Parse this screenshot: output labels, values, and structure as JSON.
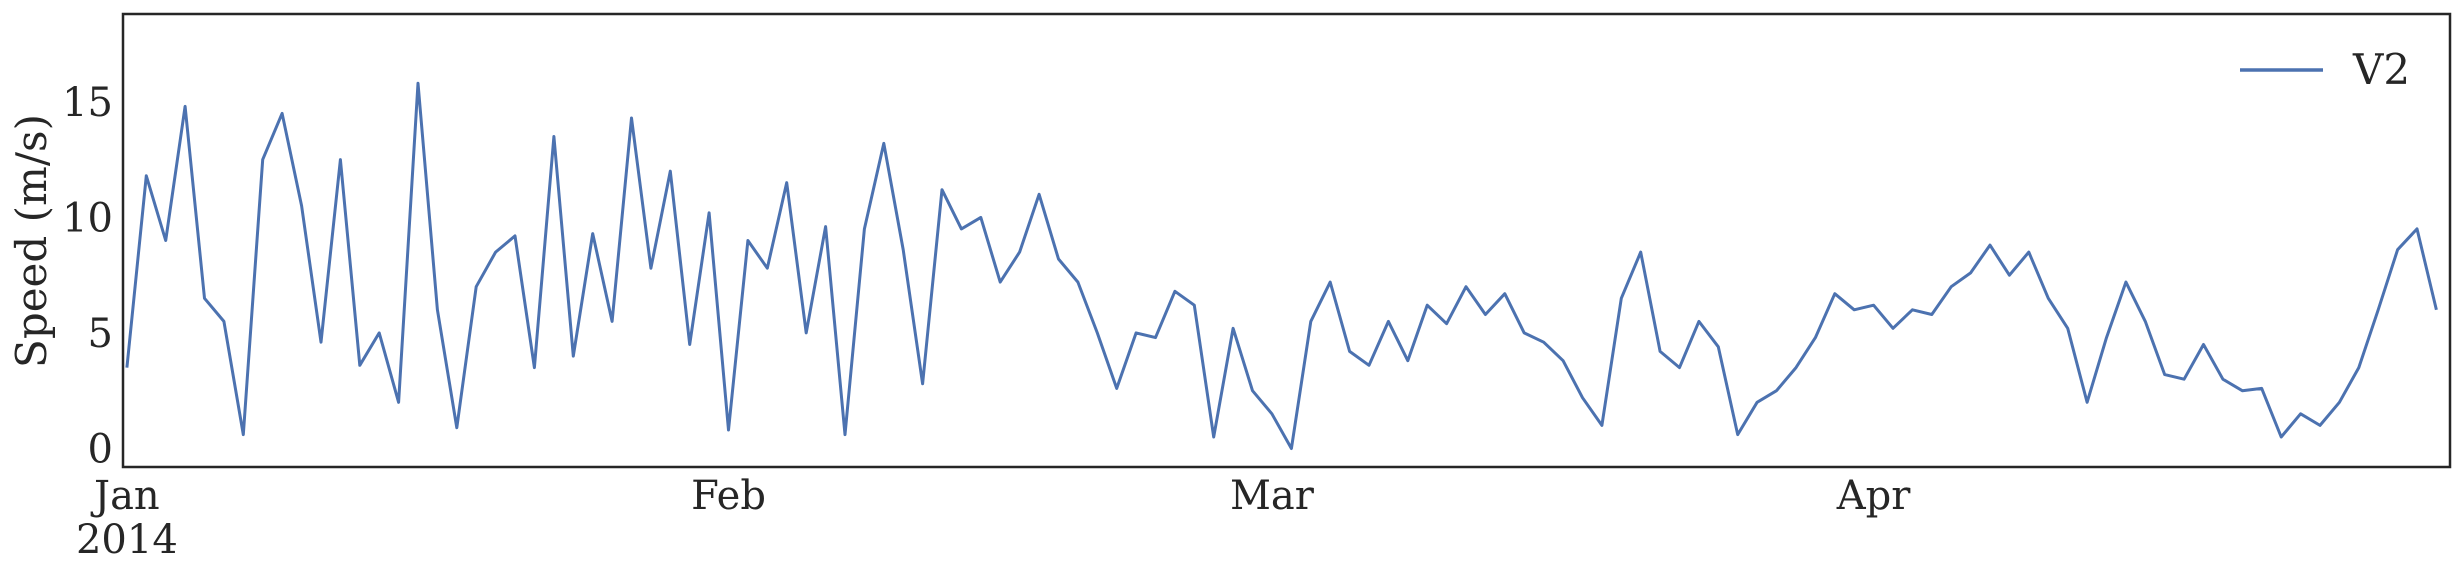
{
  "chart_data": {
    "type": "line",
    "ylabel": "Speed (m/s)",
    "xlabel": "",
    "x_ticks": [
      {
        "date": "2014-01-01",
        "label": "Jan",
        "sublabel": "2014"
      },
      {
        "date": "2014-02-01",
        "label": "Feb",
        "sublabel": ""
      },
      {
        "date": "2014-03-01",
        "label": "Mar",
        "sublabel": ""
      },
      {
        "date": "2014-04-01",
        "label": "Apr",
        "sublabel": ""
      }
    ],
    "y_ticks": [
      0,
      5,
      10,
      15
    ],
    "xlim": [
      "2014-01-01",
      "2014-04-30"
    ],
    "ylim": [
      -0.8,
      18.8
    ],
    "grid": false,
    "legend_position": "top-right",
    "series": [
      {
        "name": "V2",
        "color": "#4c72b0",
        "x": [
          "2014-01-01",
          "2014-01-02",
          "2014-01-03",
          "2014-01-04",
          "2014-01-05",
          "2014-01-06",
          "2014-01-07",
          "2014-01-08",
          "2014-01-09",
          "2014-01-10",
          "2014-01-11",
          "2014-01-12",
          "2014-01-13",
          "2014-01-14",
          "2014-01-15",
          "2014-01-16",
          "2014-01-17",
          "2014-01-18",
          "2014-01-19",
          "2014-01-20",
          "2014-01-21",
          "2014-01-22",
          "2014-01-23",
          "2014-01-24",
          "2014-01-25",
          "2014-01-26",
          "2014-01-27",
          "2014-01-28",
          "2014-01-29",
          "2014-01-30",
          "2014-01-31",
          "2014-02-01",
          "2014-02-02",
          "2014-02-03",
          "2014-02-04",
          "2014-02-05",
          "2014-02-06",
          "2014-02-07",
          "2014-02-08",
          "2014-02-09",
          "2014-02-10",
          "2014-02-11",
          "2014-02-12",
          "2014-02-13",
          "2014-02-14",
          "2014-02-15",
          "2014-02-16",
          "2014-02-17",
          "2014-02-18",
          "2014-02-19",
          "2014-02-20",
          "2014-02-21",
          "2014-02-22",
          "2014-02-23",
          "2014-02-24",
          "2014-02-25",
          "2014-02-26",
          "2014-02-27",
          "2014-02-28",
          "2014-03-01",
          "2014-03-02",
          "2014-03-03",
          "2014-03-04",
          "2014-03-05",
          "2014-03-06",
          "2014-03-07",
          "2014-03-08",
          "2014-03-09",
          "2014-03-10",
          "2014-03-11",
          "2014-03-12",
          "2014-03-13",
          "2014-03-14",
          "2014-03-15",
          "2014-03-16",
          "2014-03-17",
          "2014-03-18",
          "2014-03-19",
          "2014-03-20",
          "2014-03-21",
          "2014-03-22",
          "2014-03-23",
          "2014-03-24",
          "2014-03-25",
          "2014-03-26",
          "2014-03-27",
          "2014-03-28",
          "2014-03-29",
          "2014-03-30",
          "2014-03-31",
          "2014-04-01",
          "2014-04-02",
          "2014-04-03",
          "2014-04-04",
          "2014-04-05",
          "2014-04-06",
          "2014-04-07",
          "2014-04-08",
          "2014-04-09",
          "2014-04-10",
          "2014-04-11",
          "2014-04-12",
          "2014-04-13",
          "2014-04-14",
          "2014-04-15",
          "2014-04-16",
          "2014-04-17",
          "2014-04-18",
          "2014-04-19",
          "2014-04-20",
          "2014-04-21",
          "2014-04-22",
          "2014-04-23",
          "2014-04-24",
          "2014-04-25",
          "2014-04-26",
          "2014-04-27",
          "2014-04-28",
          "2014-04-29",
          "2014-04-30"
        ],
        "values": [
          3.5,
          11.8,
          9.0,
          14.8,
          6.5,
          5.5,
          0.6,
          12.5,
          14.5,
          10.5,
          4.6,
          12.5,
          3.6,
          5.0,
          2.0,
          15.8,
          6.0,
          0.9,
          7.0,
          8.5,
          9.2,
          3.5,
          13.5,
          4.0,
          9.3,
          5.5,
          14.3,
          7.8,
          12.0,
          4.5,
          10.2,
          0.8,
          9.0,
          7.8,
          11.5,
          5.0,
          9.6,
          0.6,
          9.5,
          13.2,
          8.6,
          2.8,
          11.2,
          9.5,
          10.0,
          7.2,
          8.5,
          11.0,
          8.2,
          7.2,
          5.0,
          2.6,
          5.0,
          4.8,
          6.8,
          6.2,
          0.5,
          5.2,
          2.5,
          1.5,
          0.0,
          5.5,
          7.2,
          4.2,
          3.6,
          5.5,
          3.8,
          6.2,
          5.4,
          7.0,
          5.8,
          6.7,
          5.0,
          4.6,
          3.8,
          2.2,
          1.0,
          6.5,
          8.5,
          4.2,
          3.5,
          5.5,
          4.4,
          0.6,
          2.0,
          2.5,
          3.5,
          4.8,
          6.7,
          6.0,
          6.2,
          5.2,
          6.0,
          5.8,
          7.0,
          7.6,
          8.8,
          7.5,
          8.5,
          6.5,
          5.2,
          2.0,
          4.8,
          7.2,
          5.5,
          3.2,
          3.0,
          4.5,
          3.0,
          2.5,
          2.6,
          0.5,
          1.5,
          1.0,
          2.0,
          3.5,
          6.0,
          8.6,
          9.5,
          6.0
        ]
      }
    ]
  }
}
